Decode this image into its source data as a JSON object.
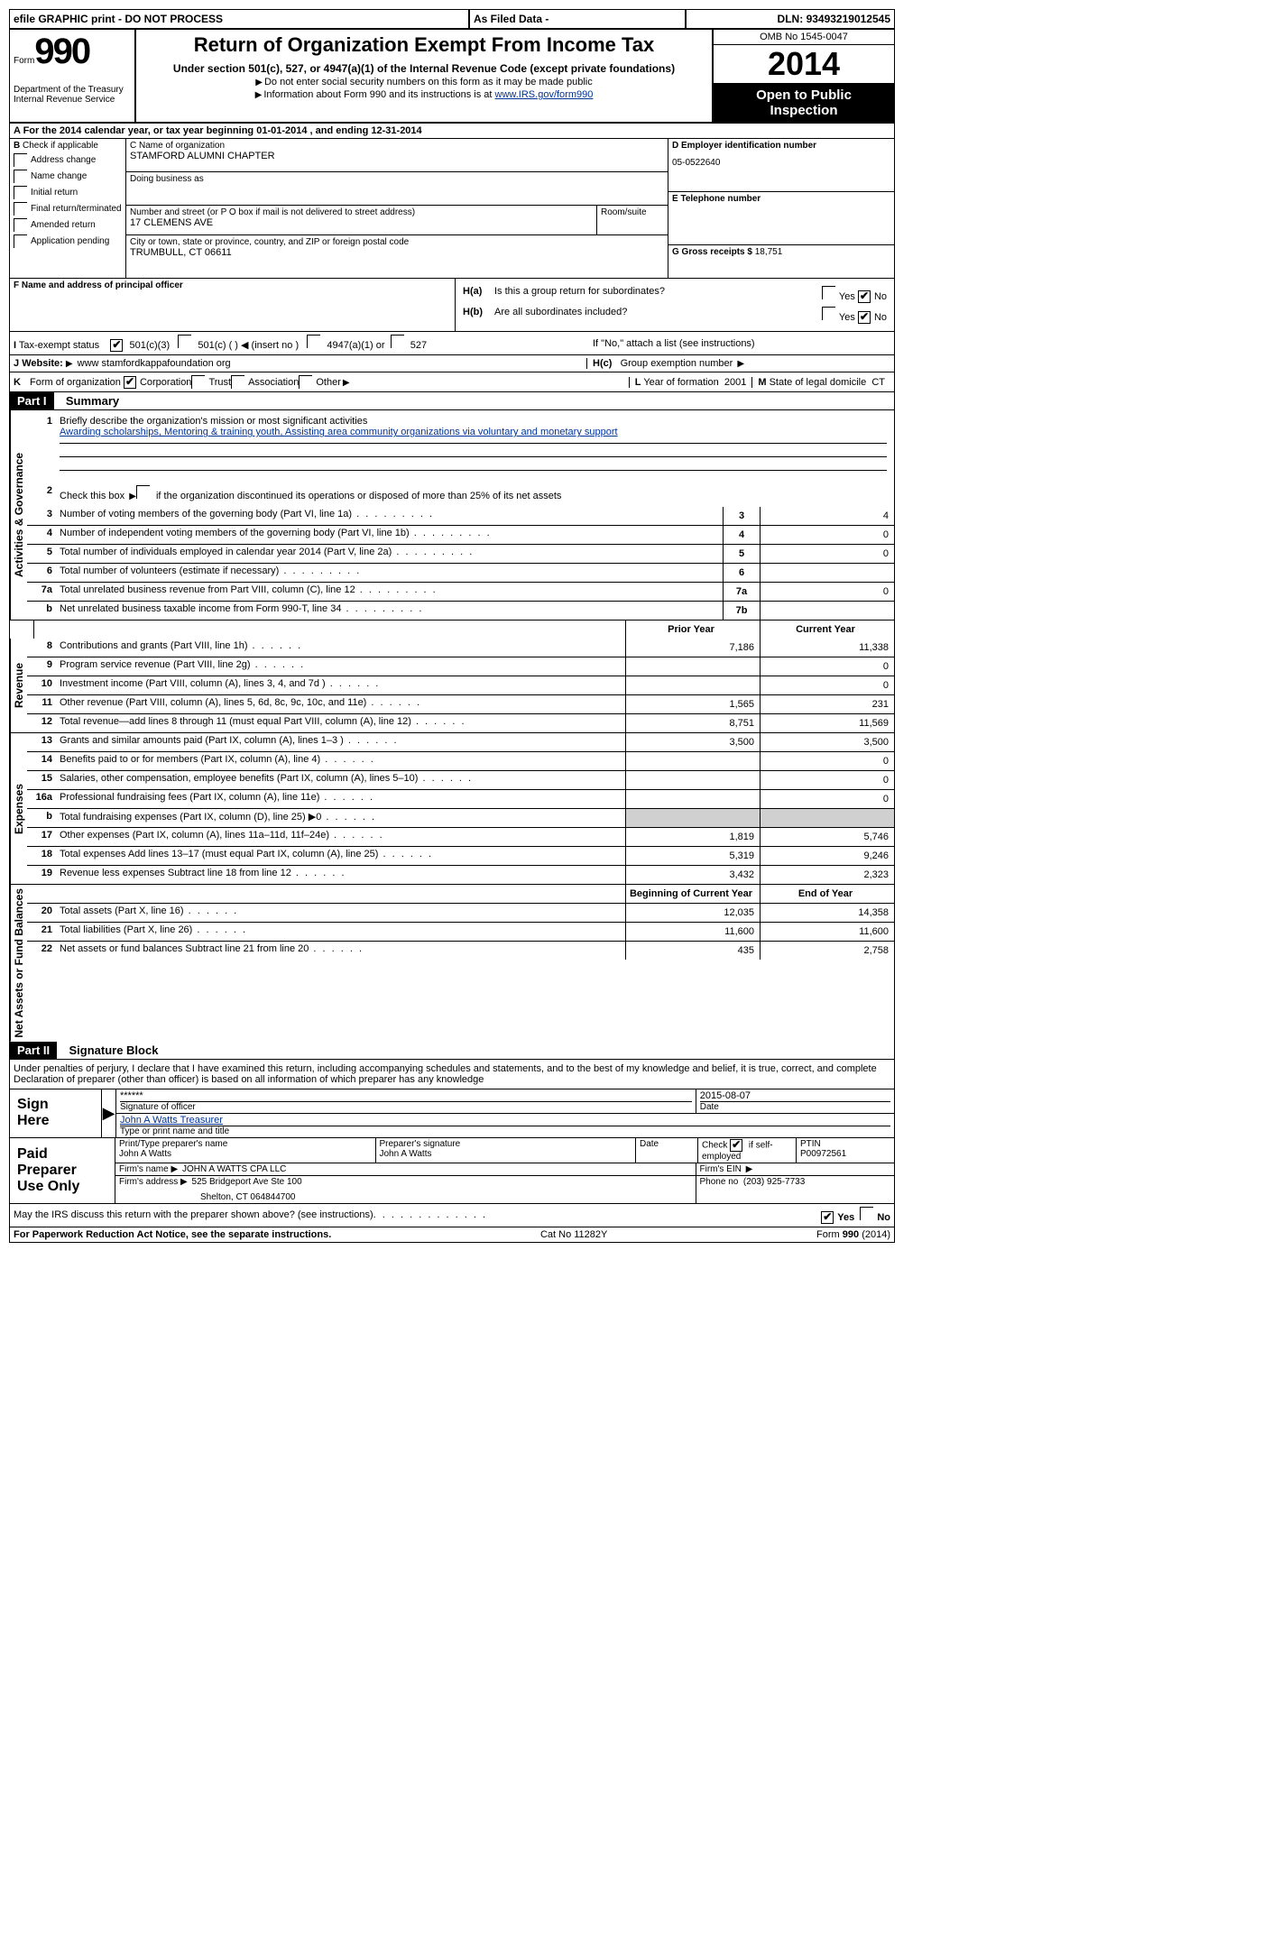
{
  "top_bar": {
    "efile": "efile GRAPHIC print - DO NOT PROCESS",
    "as_filed": "As Filed Data -",
    "dln_label": "DLN:",
    "dln": "93493219012545"
  },
  "header": {
    "form_word": "Form",
    "form_number": "990",
    "dept": "Department of the Treasury",
    "irs": "Internal Revenue Service",
    "title": "Return of Organization Exempt From Income Tax",
    "subtitle": "Under section 501(c), 527, or 4947(a)(1) of the Internal Revenue Code (except private foundations)",
    "note1": "Do not enter social security numbers on this form as it may be made public",
    "note2_prefix": "Information about Form 990 and its instructions is at ",
    "note2_link": "www.IRS.gov/form990",
    "omb": "OMB No 1545-0047",
    "year": "2014",
    "open_public_1": "Open to Public",
    "open_public_2": "Inspection"
  },
  "section_a": {
    "text_prefix": "A For the 2014 calendar year, or tax year beginning ",
    "begin": "01-01-2014",
    "mid": " , and ending ",
    "end": "12-31-2014"
  },
  "col_b": {
    "header": "B",
    "header_text": "Check if applicable",
    "items": [
      "Address change",
      "Name change",
      "Initial return",
      "Final return/terminated",
      "Amended return",
      "Application pending"
    ]
  },
  "col_c": {
    "name_label": "C Name of organization",
    "org_name": "STAMFORD ALUMNI CHAPTER",
    "dba_label": "Doing business as",
    "dba": "",
    "street_label": "Number and street (or P O  box if mail is not delivered to street address)",
    "room_label": "Room/suite",
    "street": "17 CLEMENS AVE",
    "city_label": "City or town, state or province, country, and ZIP or foreign postal code",
    "city": "TRUMBULL, CT  06611",
    "f_label": "F   Name and address of principal officer"
  },
  "col_d": {
    "d_label": "D Employer identification number",
    "ein": "05-0522640",
    "e_label": "E Telephone number",
    "phone": "",
    "g_label": "G Gross receipts $",
    "gross": "18,751"
  },
  "h_section": {
    "ha_label": "H(a)",
    "ha_text": "Is this a group return for subordinates?",
    "hb_label": "H(b)",
    "hb_text": "Are all subordinates included?",
    "hb_note": "If \"No,\" attach a list  (see instructions)",
    "hc_label": "H(c)",
    "hc_text": "Group exemption number",
    "yes": "Yes",
    "no": "No"
  },
  "row_i": {
    "label": "I",
    "text": "Tax-exempt status",
    "opt1": "501(c)(3)",
    "opt2": "501(c) (  )",
    "opt2_note": "(insert no )",
    "opt3": "4947(a)(1) or",
    "opt4": "527"
  },
  "row_j": {
    "label": "J",
    "text": "Website:",
    "value": "www stamfordkappafoundation org"
  },
  "row_k": {
    "label": "K",
    "text": "Form of organization",
    "opts": [
      "Corporation",
      "Trust",
      "Association",
      "Other"
    ],
    "l_label": "L",
    "l_text": "Year of formation",
    "l_val": "2001",
    "m_label": "M",
    "m_text": "State of legal domicile",
    "m_val": "CT"
  },
  "part1": {
    "header": "Part I",
    "title": "Summary"
  },
  "governance": {
    "label": "Activities & Governance",
    "line1_num": "1",
    "line1": "Briefly describe the organization's mission or most significant activities",
    "mission": "Awarding scholarships, Mentoring & training youth, Assisting area community organizations via voluntary and monetary support",
    "line2_num": "2",
    "line2": "Check this box",
    "line2_suffix": "if the organization discontinued its operations or disposed of more than 25% of its net assets",
    "rows": [
      {
        "n": "3",
        "d": "Number of voting members of the governing body (Part VI, line 1a)",
        "m": "3",
        "v": "4"
      },
      {
        "n": "4",
        "d": "Number of independent voting members of the governing body (Part VI, line 1b)",
        "m": "4",
        "v": "0"
      },
      {
        "n": "5",
        "d": "Total number of individuals employed in calendar year 2014 (Part V, line 2a)",
        "m": "5",
        "v": "0"
      },
      {
        "n": "6",
        "d": "Total number of volunteers (estimate if necessary)",
        "m": "6",
        "v": ""
      },
      {
        "n": "7a",
        "d": "Total unrelated business revenue from Part VIII, column (C), line 12",
        "m": "7a",
        "v": "0"
      },
      {
        "n": "b",
        "d": "Net unrelated business taxable income from Form 990-T, line 34",
        "m": "7b",
        "v": ""
      }
    ]
  },
  "col_headers": {
    "prior": "Prior Year",
    "current": "Current Year"
  },
  "revenue": {
    "label": "Revenue",
    "rows": [
      {
        "n": "8",
        "d": "Contributions and grants (Part VIII, line 1h)",
        "p": "7,186",
        "c": "11,338"
      },
      {
        "n": "9",
        "d": "Program service revenue (Part VIII, line 2g)",
        "p": "",
        "c": "0"
      },
      {
        "n": "10",
        "d": "Investment income (Part VIII, column (A), lines 3, 4, and 7d )",
        "p": "",
        "c": "0"
      },
      {
        "n": "11",
        "d": "Other revenue (Part VIII, column (A), lines 5, 6d, 8c, 9c, 10c, and 11e)",
        "p": "1,565",
        "c": "231"
      },
      {
        "n": "12",
        "d": "Total revenue—add lines 8 through 11 (must equal Part VIII, column (A), line 12)",
        "p": "8,751",
        "c": "11,569"
      }
    ]
  },
  "expenses": {
    "label": "Expenses",
    "rows": [
      {
        "n": "13",
        "d": "Grants and similar amounts paid (Part IX, column (A), lines 1–3 )",
        "p": "3,500",
        "c": "3,500"
      },
      {
        "n": "14",
        "d": "Benefits paid to or for members (Part IX, column (A), line 4)",
        "p": "",
        "c": "0"
      },
      {
        "n": "15",
        "d": "Salaries, other compensation, employee benefits (Part IX, column (A), lines 5–10)",
        "p": "",
        "c": "0"
      },
      {
        "n": "16a",
        "d": "Professional fundraising fees (Part IX, column (A), line 11e)",
        "p": "",
        "c": "0"
      },
      {
        "n": "b",
        "d": "Total fundraising expenses (Part IX, column (D), line 25) ▶0",
        "p": "grey",
        "c": "grey"
      },
      {
        "n": "17",
        "d": "Other expenses (Part IX, column (A), lines 11a–11d, 11f–24e)",
        "p": "1,819",
        "c": "5,746"
      },
      {
        "n": "18",
        "d": "Total expenses  Add lines 13–17 (must equal Part IX, column (A), line 25)",
        "p": "5,319",
        "c": "9,246"
      },
      {
        "n": "19",
        "d": "Revenue less expenses  Subtract line 18 from line 12",
        "p": "3,432",
        "c": "2,323"
      }
    ]
  },
  "net_assets": {
    "label": "Net Assets or Fund Balances",
    "header_p": "Beginning of Current Year",
    "header_c": "End of Year",
    "rows": [
      {
        "n": "20",
        "d": "Total assets (Part X, line 16)",
        "p": "12,035",
        "c": "14,358"
      },
      {
        "n": "21",
        "d": "Total liabilities (Part X, line 26)",
        "p": "11,600",
        "c": "11,600"
      },
      {
        "n": "22",
        "d": "Net assets or fund balances  Subtract line 21 from line 20",
        "p": "435",
        "c": "2,758"
      }
    ]
  },
  "part2": {
    "header": "Part II",
    "title": "Signature Block",
    "declaration": "Under penalties of perjury, I declare that I have examined this return, including accompanying schedules and statements, and to the best of my knowledge and belief, it is true, correct, and complete  Declaration of preparer (other than officer) is based on all information of which preparer has any knowledge"
  },
  "sign_here": {
    "label1": "Sign",
    "label2": "Here",
    "sig_masked": "******",
    "sig_label": "Signature of officer",
    "date_label": "Date",
    "date": "2015-08-07",
    "name": "John A Watts Treasurer",
    "name_label": "Type or print name and title"
  },
  "paid_preparer": {
    "label1": "Paid",
    "label2": "Preparer",
    "label3": "Use Only",
    "prep_name_label": "Print/Type preparer's name",
    "prep_name": "John A Watts",
    "prep_sig_label": "Preparer's signature",
    "prep_sig": "John A Watts",
    "date_label": "Date",
    "check_label": "Check",
    "check_suffix": "if self-employed",
    "ptin_label": "PTIN",
    "ptin": "P00972561",
    "firm_name_label": "Firm's name   ",
    "firm_name": "JOHN A WATTS CPA LLC",
    "firm_ein_label": "Firm's EIN",
    "firm_addr_label": "Firm's address",
    "firm_addr1": "525 Bridgeport Ave Ste 100",
    "firm_addr2": "Shelton, CT  064844700",
    "phone_label": "Phone no",
    "phone": "(203) 925-7733"
  },
  "discuss": {
    "text": "May the IRS discuss this return with the preparer shown above? (see instructions)",
    "yes": "Yes",
    "no": "No"
  },
  "footer": {
    "left": "For Paperwork Reduction Act Notice, see the separate instructions.",
    "mid": "Cat No  11282Y",
    "right": "Form 990 (2014)"
  }
}
